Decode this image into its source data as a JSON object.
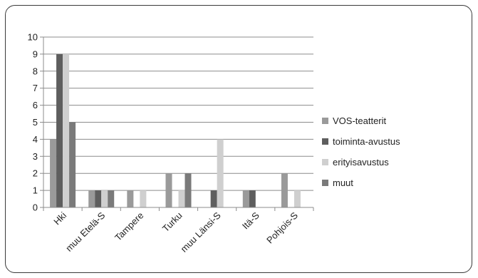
{
  "chart_data": {
    "type": "bar",
    "categories": [
      "Hki",
      "muu Etelä-S",
      "Tampere",
      "Turku",
      "muu Länsi-S",
      "Itä-S",
      "Pohjois-S"
    ],
    "series": [
      {
        "name": "VOS-teatterit",
        "values": [
          4,
          1,
          1,
          2,
          0,
          1,
          2
        ],
        "color": "#9a9a9a"
      },
      {
        "name": "toiminta-avustus",
        "values": [
          9,
          1,
          0,
          0,
          1,
          1,
          0
        ],
        "color": "#5e5e5e"
      },
      {
        "name": "erityisavustus",
        "values": [
          9,
          1,
          1,
          1,
          4,
          0,
          1
        ],
        "color": "#cfcfcf"
      },
      {
        "name": "muut",
        "values": [
          5,
          1,
          0,
          2,
          0,
          0,
          0
        ],
        "color": "#7a7a7a"
      }
    ],
    "y_ticks": [
      "0",
      "1",
      "2",
      "3",
      "4",
      "5",
      "6",
      "7",
      "8",
      "9",
      "10"
    ],
    "ylim": [
      0,
      10
    ],
    "grid": true,
    "legend_position": "right"
  }
}
